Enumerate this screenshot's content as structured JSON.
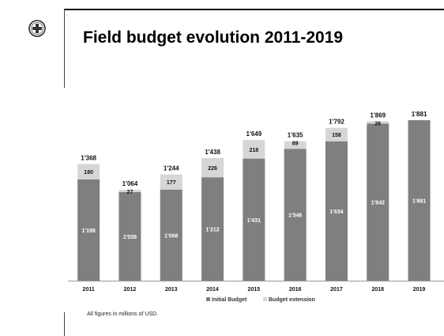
{
  "slide": {
    "title": "Field budget evolution 2011-2019",
    "footnote": "All figures in millions of USD."
  },
  "logo": {
    "icon": "red-cross-emblem-icon"
  },
  "colors": {
    "initial": "#7f7f7f",
    "extension": "#d6d6d6",
    "axis": "#999999",
    "label_dark": "#111111",
    "label_light": "#ffffff"
  },
  "chart_data": {
    "type": "bar",
    "stacked": true,
    "categories": [
      "2011",
      "2012",
      "2013",
      "2014",
      "2015",
      "2016",
      "2017",
      "2018",
      "2019"
    ],
    "series": [
      {
        "name": "Initial Budget",
        "values": [
          1188,
          1038,
          1068,
          1212,
          1431,
          1546,
          1634,
          1842,
          1881
        ],
        "labels": [
          "1'188",
          "1'038",
          "1'068",
          "1'212",
          "1'431",
          "1'546",
          "1'634",
          "1'842",
          "1'881"
        ]
      },
      {
        "name": "Budget extension",
        "values": [
          180,
          27,
          177,
          226,
          218,
          89,
          158,
          26,
          0
        ],
        "labels": [
          "180",
          "27",
          "177",
          "226",
          "218",
          "89",
          "158",
          "26",
          ""
        ]
      }
    ],
    "totals": [
      "1'368",
      "1'064",
      "1'244",
      "1'438",
      "1'649",
      "1'635",
      "1'792",
      "1'869",
      "1'881"
    ],
    "ylim": [
      0,
      2000
    ],
    "grid": false,
    "legend_position": "bottom"
  }
}
